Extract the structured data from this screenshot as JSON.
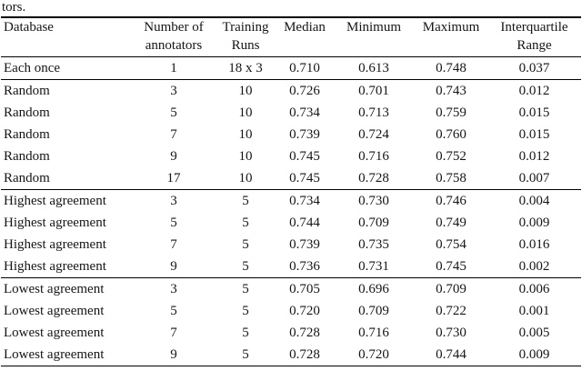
{
  "caption_fragment": "tors.",
  "table": {
    "headers": [
      {
        "line1": "Database",
        "line2": ""
      },
      {
        "line1": "Number of",
        "line2": "annotators"
      },
      {
        "line1": "Training",
        "line2": "Runs"
      },
      {
        "line1": "Median",
        "line2": ""
      },
      {
        "line1": "Minimum",
        "line2": ""
      },
      {
        "line1": "Maximum",
        "line2": ""
      },
      {
        "line1": "Interquartile",
        "line2": "Range"
      }
    ],
    "groups": [
      {
        "rows": [
          [
            "Each once",
            "1",
            "18 x 3",
            "0.710",
            "0.613",
            "0.748",
            "0.037"
          ]
        ]
      },
      {
        "rows": [
          [
            "Random",
            "3",
            "10",
            "0.726",
            "0.701",
            "0.743",
            "0.012"
          ],
          [
            "Random",
            "5",
            "10",
            "0.734",
            "0.713",
            "0.759",
            "0.015"
          ],
          [
            "Random",
            "7",
            "10",
            "0.739",
            "0.724",
            "0.760",
            "0.015"
          ],
          [
            "Random",
            "9",
            "10",
            "0.745",
            "0.716",
            "0.752",
            "0.012"
          ],
          [
            "Random",
            "17",
            "10",
            "0.745",
            "0.728",
            "0.758",
            "0.007"
          ]
        ]
      },
      {
        "rows": [
          [
            "Highest agreement",
            "3",
            "5",
            "0.734",
            "0.730",
            "0.746",
            "0.004"
          ],
          [
            "Highest agreement",
            "5",
            "5",
            "0.744",
            "0.709",
            "0.749",
            "0.009"
          ],
          [
            "Highest agreement",
            "7",
            "5",
            "0.739",
            "0.735",
            "0.754",
            "0.016"
          ],
          [
            "Highest agreement",
            "9",
            "5",
            "0.736",
            "0.731",
            "0.745",
            "0.002"
          ]
        ]
      },
      {
        "rows": [
          [
            "Lowest agreement",
            "3",
            "5",
            "0.705",
            "0.696",
            "0.709",
            "0.006"
          ],
          [
            "Lowest agreement",
            "5",
            "5",
            "0.720",
            "0.709",
            "0.722",
            "0.001"
          ],
          [
            "Lowest agreement",
            "7",
            "5",
            "0.728",
            "0.716",
            "0.730",
            "0.005"
          ],
          [
            "Lowest agreement",
            "9",
            "5",
            "0.728",
            "0.720",
            "0.744",
            "0.009"
          ]
        ]
      }
    ]
  }
}
